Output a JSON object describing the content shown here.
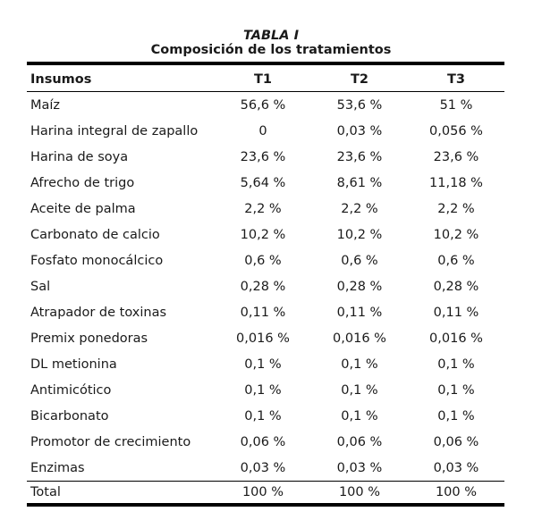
{
  "caption": {
    "label": "TABLA I",
    "title": "Composición de los tratamientos"
  },
  "table": {
    "headers": [
      "Insumos",
      "T1",
      "T2",
      "T3"
    ],
    "rows": [
      [
        "Maíz",
        "56,6 %",
        "53,6 %",
        "51 %"
      ],
      [
        "Harina integral de zapallo",
        "0",
        "0,03 %",
        "0,056 %"
      ],
      [
        "Harina de soya",
        "23,6 %",
        "23,6 %",
        "23,6 %"
      ],
      [
        "Afrecho de trigo",
        "5,64 %",
        "8,61 %",
        "11,18 %"
      ],
      [
        "Aceite de palma",
        "2,2 %",
        "2,2 %",
        "2,2 %"
      ],
      [
        "Carbonato de calcio",
        "10,2 %",
        "10,2 %",
        "10,2 %"
      ],
      [
        "Fosfato monocálcico",
        "0,6 %",
        "0,6 %",
        "0,6 %"
      ],
      [
        "Sal",
        "0,28 %",
        "0,28 %",
        "0,28 %"
      ],
      [
        "Atrapador de toxinas",
        "0,11 %",
        "0,11 %",
        "0,11 %"
      ],
      [
        "Premix ponedoras",
        "0,016 %",
        "0,016 %",
        "0,016 %"
      ],
      [
        "DL metionina",
        "0,1 %",
        "0,1 %",
        "0,1 %"
      ],
      [
        "Antimicótico",
        "0,1 %",
        "0,1 %",
        "0,1 %"
      ],
      [
        "Bicarbonato",
        "0,1 %",
        "0,1 %",
        "0,1 %"
      ],
      [
        "Promotor de crecimiento",
        "0,06 %",
        "0,06 %",
        "0,06 %"
      ],
      [
        "Enzimas",
        "0,03 %",
        "0,03 %",
        "0,03 %"
      ]
    ],
    "total": [
      "Total",
      "100 %",
      "100 %",
      "100 %"
    ]
  }
}
